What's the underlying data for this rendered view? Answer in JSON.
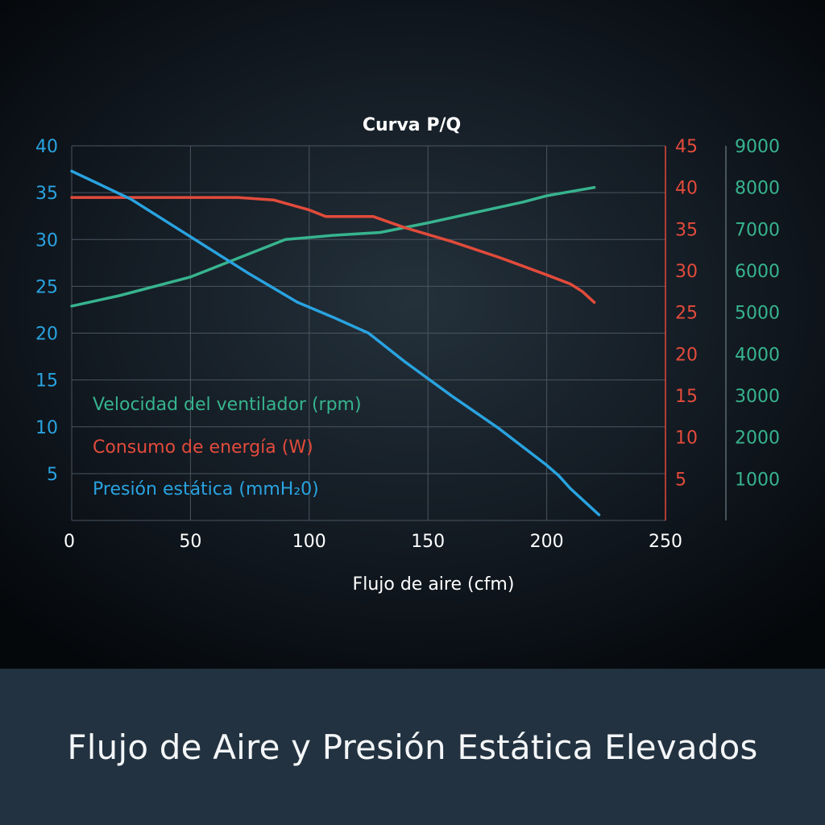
{
  "chart_data": {
    "type": "line",
    "title": "Curva P/Q",
    "xlabel": "Flujo de aire (cfm)",
    "x_ticks": [
      "0",
      "50",
      "100",
      "150",
      "200",
      "250"
    ],
    "xlim": [
      0,
      250
    ],
    "grid": true,
    "legend_placement": "left",
    "axes": {
      "pressure": {
        "ticks": [
          "40",
          "35",
          "30",
          "25",
          "20",
          "15",
          "10",
          "5"
        ],
        "range": [
          0,
          40
        ],
        "color": "#29a3e0"
      },
      "power": {
        "ticks": [
          "45",
          "40",
          "35",
          "30",
          "25",
          "20",
          "15",
          "10",
          "5"
        ],
        "range": [
          0,
          45
        ],
        "color": "#e24b3b"
      },
      "rpm": {
        "ticks": [
          "9000",
          "8000",
          "7000",
          "6000",
          "5000",
          "4000",
          "3000",
          "2000",
          "1000"
        ],
        "range": [
          0,
          9000
        ],
        "color": "#37b48e"
      }
    },
    "series": [
      {
        "name": "Velocidad del ventilador (rpm)",
        "axis": "rpm",
        "color": "#37b48e",
        "x": [
          0,
          20,
          50,
          70,
          90,
          110,
          130,
          150,
          170,
          190,
          200,
          210,
          220
        ],
        "y": [
          5150,
          5400,
          5850,
          6300,
          6750,
          6850,
          6920,
          7150,
          7400,
          7650,
          7800,
          7900,
          8000
        ]
      },
      {
        "name": "Consumo de energía (W)",
        "axis": "power",
        "color": "#e24b3b",
        "x": [
          0,
          70,
          85,
          100,
          107,
          127,
          140,
          160,
          180,
          200,
          210,
          215,
          220
        ],
        "y": [
          38.8,
          38.8,
          38.5,
          37.3,
          36.5,
          36.5,
          35.2,
          33.5,
          31.6,
          29.5,
          28.4,
          27.5,
          26.2
        ]
      },
      {
        "name": "Presión estática (mmH₂0)",
        "axis": "pressure",
        "color": "#29a3e0",
        "x": [
          0,
          25,
          50,
          75,
          95,
          110,
          125,
          140,
          160,
          180,
          200,
          205,
          210,
          222
        ],
        "y": [
          37.3,
          34.3,
          30.3,
          26.3,
          23.3,
          21.7,
          20.0,
          17.0,
          13.3,
          9.8,
          5.9,
          4.8,
          3.4,
          0.6
        ]
      }
    ]
  },
  "banner": {
    "text": "Flujo de Aire y Presión Estática Elevados"
  }
}
